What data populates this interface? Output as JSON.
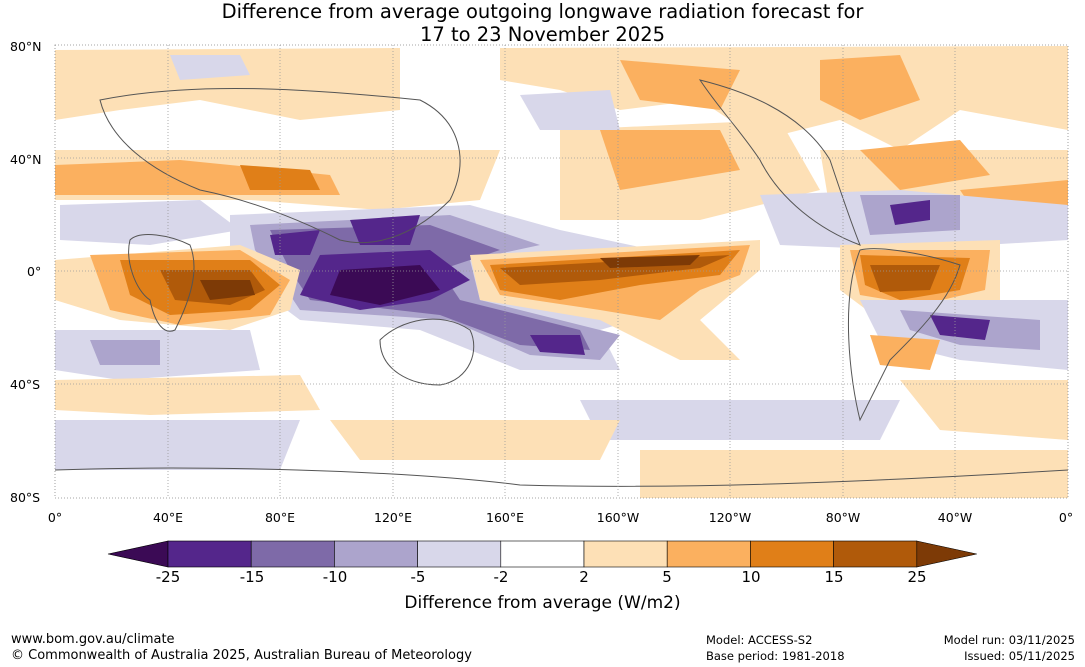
{
  "title_line1": "Difference from average outgoing longwave radiation forecast for",
  "title_line2": "17 to 23 November 2025",
  "lat_labels": [
    "80°N",
    "40°N",
    "0°",
    "40°S",
    "80°S"
  ],
  "lon_labels": [
    "0°",
    "40°E",
    "80°E",
    "120°E",
    "160°E",
    "160°W",
    "120°W",
    "80°W",
    "40°W",
    "0°"
  ],
  "colorbar": {
    "ticks": [
      "-25",
      "-15",
      "-10",
      "-5",
      "-2",
      "2",
      "5",
      "10",
      "15",
      "25"
    ],
    "colors": [
      "#3b0a55",
      "#54268b",
      "#7e6aa8",
      "#aca4cc",
      "#d8d7ea",
      "#ffffff",
      "#fde0b6",
      "#fbb05f",
      "#e07f18",
      "#b05a0a",
      "#7d3a06"
    ],
    "label": "Difference from average (W/m2)"
  },
  "footer": {
    "website": "www.bom.gov.au/climate",
    "copyright": "© Commonwealth of Australia 2025, Australian Bureau of Meteorology",
    "model": "Model: ACCESS-S2",
    "base_period": "Base period: 1981-2018",
    "model_run": "Model run: 03/11/2025",
    "issued": "Issued: 05/11/2025"
  }
}
